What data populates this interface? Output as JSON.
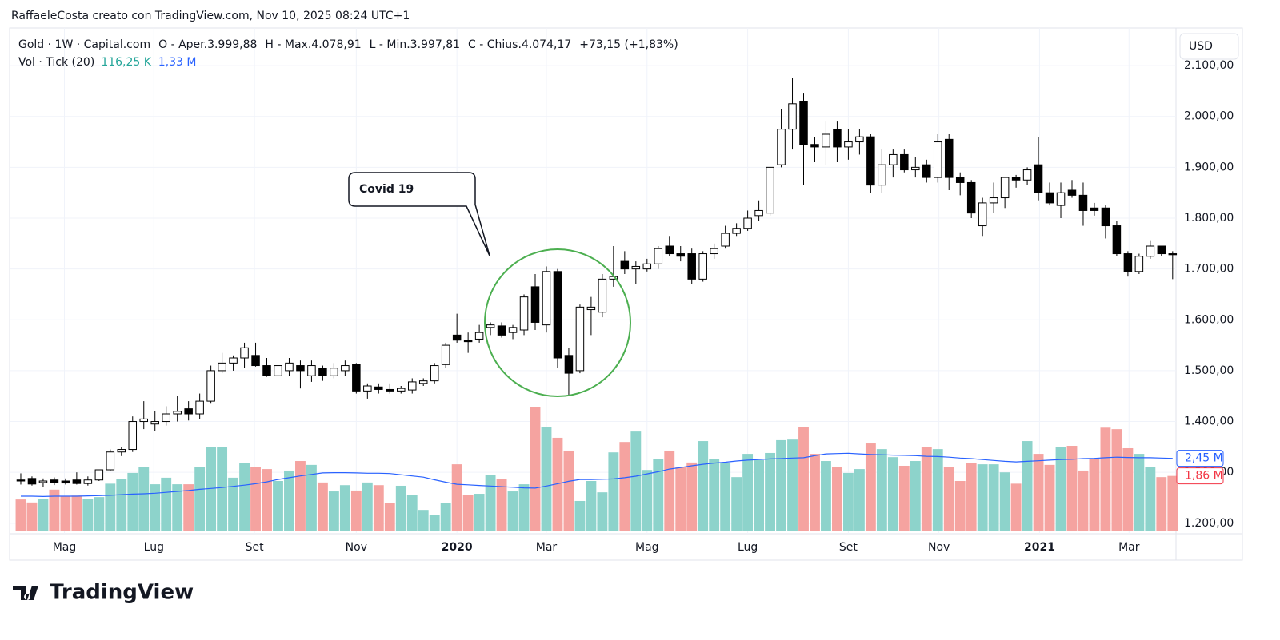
{
  "header": {
    "attribution": "RaffaeleCosta creato con TradingView.com, Nov 10, 2025 08:24 UTC+1"
  },
  "chart_data": {
    "type": "candlestick",
    "symbol_legend": {
      "name": "Gold · 1W · Capital.com",
      "open": "O - Aper.3.999,88",
      "high": "H - Max.4.078,91",
      "low": "L - Min.3.997,81",
      "close": "C - Chius.4.074,17",
      "change": "+73,15 (+1,83%)"
    },
    "volume_legend": {
      "name": "Vol · Tick (20)",
      "value": "116,25 K",
      "ma": "1,33 M"
    },
    "currency": "USD",
    "annotation": "Covid 19",
    "xlim": [
      -1,
      103.3
    ],
    "xticks": [
      {
        "value": 3.9,
        "label": "Mag"
      },
      {
        "value": 11.9,
        "label": "Lug"
      },
      {
        "value": 20.9,
        "label": "Set"
      },
      {
        "value": 30.0,
        "label": "Nov"
      },
      {
        "value": 39.0,
        "label": "2020"
      },
      {
        "value": 47.0,
        "label": "Mar"
      },
      {
        "value": 56.0,
        "label": "Mag"
      },
      {
        "value": 65.0,
        "label": "Lug"
      },
      {
        "value": 74.0,
        "label": "Set"
      },
      {
        "value": 82.1,
        "label": "Nov"
      },
      {
        "value": 91.1,
        "label": "2021"
      },
      {
        "value": 99.1,
        "label": "Mar"
      }
    ],
    "ylim": [
      1184,
      2174
    ],
    "yticks": [
      {
        "value": 1200,
        "label": "1.200,00"
      },
      {
        "value": 1300,
        "label": "1.300,00"
      },
      {
        "value": 1400,
        "label": "1.400,00"
      },
      {
        "value": 1500,
        "label": "1.500,00"
      },
      {
        "value": 1600,
        "label": "1.600,00"
      },
      {
        "value": 1700,
        "label": "1.700,00"
      },
      {
        "value": 1800,
        "label": "1.800,00"
      },
      {
        "value": 1900,
        "label": "1.900,00"
      },
      {
        "value": 2000,
        "label": "2.000,00"
      },
      {
        "value": 2100,
        "label": "2.100,00"
      }
    ],
    "grid": true,
    "open": [
      1285,
      1288,
      1280,
      1285,
      1283,
      1285,
      1278,
      1285,
      1305,
      1340,
      1345,
      1400,
      1395,
      1400,
      1415,
      1425,
      1415,
      1440,
      1500,
      1515,
      1525,
      1530,
      1510,
      1490,
      1500,
      1510,
      1490,
      1505,
      1490,
      1500,
      1512,
      1460,
      1468,
      1463,
      1460,
      1462,
      1475,
      1480,
      1512,
      1570,
      1560,
      1562,
      1585,
      1588,
      1575,
      1580,
      1665,
      1590,
      1695,
      1530,
      1500,
      1620,
      1615,
      1680,
      1715,
      1700,
      1700,
      1710,
      1745,
      1730,
      1730,
      1680,
      1730,
      1745,
      1770,
      1780,
      1805,
      1810,
      1905,
      1975,
      2030,
      1945,
      1940,
      1975,
      1940,
      1950,
      1960,
      1865,
      1905,
      1925,
      1895,
      1905,
      1880,
      1955,
      1880,
      1870,
      1785,
      1830,
      1840,
      1880,
      1875,
      1905,
      1850,
      1825,
      1855,
      1845,
      1820,
      1820,
      1785,
      1730,
      1695,
      1725,
      1745,
      1730
    ],
    "high": [
      1298,
      1292,
      1288,
      1290,
      1288,
      1300,
      1292,
      1305,
      1345,
      1350,
      1410,
      1440,
      1420,
      1430,
      1450,
      1440,
      1455,
      1510,
      1535,
      1530,
      1555,
      1555,
      1525,
      1535,
      1525,
      1520,
      1520,
      1510,
      1515,
      1520,
      1515,
      1475,
      1475,
      1475,
      1470,
      1485,
      1485,
      1515,
      1555,
      1612,
      1575,
      1590,
      1595,
      1595,
      1590,
      1650,
      1690,
      1705,
      1700,
      1545,
      1630,
      1645,
      1690,
      1745,
      1735,
      1715,
      1720,
      1745,
      1765,
      1745,
      1740,
      1735,
      1750,
      1785,
      1790,
      1815,
      1835,
      1900,
      2015,
      2075,
      2045,
      1960,
      1990,
      1990,
      1975,
      1975,
      1965,
      1935,
      1935,
      1935,
      1920,
      1915,
      1965,
      1965,
      1890,
      1875,
      1840,
      1870,
      1880,
      1885,
      1900,
      1960,
      1870,
      1870,
      1875,
      1870,
      1830,
      1825,
      1795,
      1735,
      1730,
      1755,
      1745,
      1735
    ],
    "low": [
      1276,
      1274,
      1272,
      1275,
      1276,
      1276,
      1274,
      1283,
      1302,
      1332,
      1340,
      1385,
      1382,
      1392,
      1400,
      1402,
      1405,
      1435,
      1495,
      1500,
      1505,
      1508,
      1488,
      1485,
      1490,
      1465,
      1478,
      1480,
      1485,
      1490,
      1455,
      1445,
      1455,
      1455,
      1455,
      1455,
      1470,
      1475,
      1505,
      1555,
      1535,
      1555,
      1570,
      1565,
      1562,
      1570,
      1580,
      1575,
      1505,
      1450,
      1495,
      1570,
      1605,
      1665,
      1690,
      1670,
      1695,
      1700,
      1725,
      1715,
      1670,
      1675,
      1720,
      1740,
      1765,
      1775,
      1795,
      1805,
      1900,
      1935,
      1865,
      1910,
      1905,
      1910,
      1915,
      1925,
      1850,
      1850,
      1880,
      1890,
      1880,
      1870,
      1870,
      1855,
      1845,
      1800,
      1765,
      1810,
      1820,
      1860,
      1865,
      1835,
      1825,
      1800,
      1840,
      1785,
      1805,
      1760,
      1725,
      1685,
      1690,
      1720,
      1725,
      1680
    ],
    "close": [
      1283,
      1277,
      1283,
      1280,
      1279,
      1278,
      1285,
      1305,
      1340,
      1345,
      1400,
      1405,
      1400,
      1415,
      1420,
      1415,
      1440,
      1500,
      1515,
      1525,
      1545,
      1510,
      1490,
      1510,
      1515,
      1500,
      1510,
      1490,
      1505,
      1510,
      1460,
      1470,
      1463,
      1460,
      1465,
      1478,
      1480,
      1510,
      1550,
      1560,
      1557,
      1575,
      1590,
      1570,
      1585,
      1645,
      1595,
      1695,
      1525,
      1495,
      1625,
      1625,
      1680,
      1685,
      1700,
      1705,
      1710,
      1740,
      1730,
      1725,
      1680,
      1730,
      1740,
      1770,
      1780,
      1800,
      1815,
      1900,
      1975,
      2025,
      1945,
      1940,
      1965,
      1940,
      1950,
      1960,
      1865,
      1905,
      1925,
      1895,
      1900,
      1880,
      1950,
      1880,
      1870,
      1810,
      1830,
      1840,
      1880,
      1875,
      1895,
      1850,
      1830,
      1850,
      1845,
      1815,
      1815,
      1785,
      1730,
      1695,
      1725,
      1745,
      1730,
      1728
    ],
    "up_color": "#ffffff",
    "down_color": "#000000",
    "volume": {
      "ylim": [
        0,
        16.9
      ],
      "up_color": "#8dd3cb",
      "down_color": "#f5a3a0",
      "values": [
        1.07,
        0.97,
        1.1,
        1.4,
        1.18,
        1.2,
        1.1,
        1.15,
        1.6,
        1.77,
        1.96,
        2.15,
        1.58,
        1.8,
        1.58,
        1.58,
        2.15,
        2.84,
        2.82,
        1.8,
        2.28,
        2.17,
        2.09,
        1.69,
        2.04,
        2.36,
        2.23,
        1.64,
        1.34,
        1.55,
        1.37,
        1.64,
        1.55,
        0.94,
        1.53,
        1.23,
        0.72,
        0.54,
        0.94,
        2.25,
        1.23,
        1.26,
        1.88,
        1.77,
        1.34,
        1.58,
        4.16,
        3.51,
        3.14,
        2.71,
        1.02,
        1.69,
        1.31,
        2.65,
        3.0,
        3.35,
        2.06,
        2.44,
        2.71,
        2.17,
        2.31,
        3.03,
        2.44,
        2.28,
        1.82,
        2.6,
        2.39,
        2.63,
        3.06,
        3.08,
        3.51,
        2.6,
        2.36,
        2.15,
        1.96,
        2.09,
        2.95,
        2.76,
        2.49,
        2.2,
        2.36,
        2.82,
        2.76,
        2.17,
        1.69,
        2.28,
        2.25,
        2.25,
        1.98,
        1.6,
        3.03,
        2.6,
        2.23,
        2.84,
        2.87,
        2.04,
        2.44,
        3.48,
        3.43,
        2.79,
        2.6,
        2.15,
        1.82,
        1.86
      ]
    },
    "volume_ma": {
      "color": "#2962ff",
      "values": [
        1.18,
        1.18,
        1.17,
        1.18,
        1.18,
        1.18,
        1.19,
        1.2,
        1.21,
        1.23,
        1.25,
        1.26,
        1.28,
        1.31,
        1.34,
        1.37,
        1.41,
        1.44,
        1.47,
        1.51,
        1.55,
        1.6,
        1.66,
        1.74,
        1.8,
        1.86,
        1.91,
        1.96,
        1.97,
        1.97,
        1.96,
        1.95,
        1.95,
        1.94,
        1.9,
        1.86,
        1.82,
        1.73,
        1.65,
        1.58,
        1.56,
        1.54,
        1.52,
        1.5,
        1.48,
        1.46,
        1.45,
        1.52,
        1.6,
        1.68,
        1.74,
        1.74,
        1.75,
        1.76,
        1.8,
        1.85,
        1.93,
        2.0,
        2.09,
        2.14,
        2.2,
        2.25,
        2.29,
        2.32,
        2.36,
        2.39,
        2.41,
        2.43,
        2.44,
        2.46,
        2.47,
        2.54,
        2.6,
        2.61,
        2.62,
        2.6,
        2.58,
        2.57,
        2.56,
        2.55,
        2.54,
        2.52,
        2.51,
        2.49,
        2.46,
        2.44,
        2.41,
        2.38,
        2.35,
        2.33,
        2.35,
        2.37,
        2.39,
        2.41,
        2.42,
        2.44,
        2.45,
        2.47,
        2.49,
        2.48,
        2.47,
        2.47,
        2.46,
        2.45
      ]
    },
    "badges": [
      {
        "value": 2.45,
        "label": "2,45 M",
        "color": "#2962ff"
      },
      {
        "value": 1.86,
        "label": "1,86 M",
        "color": "#f23645"
      }
    ]
  },
  "footer": {
    "brand": "TradingView"
  }
}
